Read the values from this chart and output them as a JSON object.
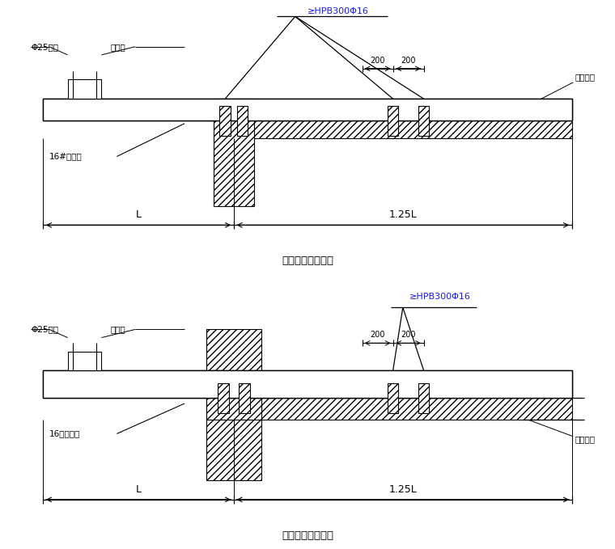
{
  "bg_color": "#ffffff",
  "title1": "悬挑钢梁楼面构造",
  "title2": "悬挑钢梁穿墙构造",
  "label_phi25": "Φ25钢筋",
  "label_tongkuan": "同架宽",
  "label_16h": "16#工字钢",
  "label_16h2": "16号工字钢",
  "label_hpb1": "≥HPB300Φ16",
  "label_hpb2": "≥HPB300Φ16",
  "label_200a": "200",
  "label_200b": "200",
  "label_muji": "木楔塞紧",
  "label_L": "L",
  "label_125L": "1.25L"
}
